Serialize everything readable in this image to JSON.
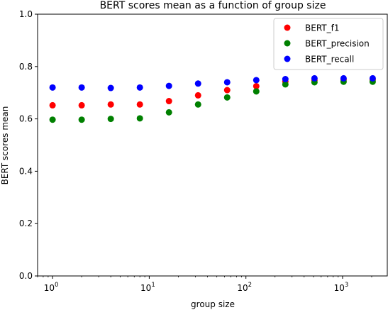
{
  "chart_data": {
    "type": "scatter",
    "title": "BERT scores mean as a function of group size",
    "xlabel": "group size",
    "ylabel": "BERT scores mean",
    "xscale": "log",
    "xlim": [
      0.7,
      2900
    ],
    "ylim": [
      0.0,
      1.0
    ],
    "yticks": [
      0.0,
      0.2,
      0.4,
      0.6,
      0.8,
      1.0
    ],
    "ytick_labels": [
      "0.0",
      "0.2",
      "0.4",
      "0.6",
      "0.8",
      "1.0"
    ],
    "xticks_major": [
      1,
      10,
      100,
      1000
    ],
    "xtick_labels": [
      {
        "base": "10",
        "exp": "0"
      },
      {
        "base": "10",
        "exp": "1"
      },
      {
        "base": "10",
        "exp": "2"
      },
      {
        "base": "10",
        "exp": "3"
      }
    ],
    "grid": false,
    "legend_position": "top-right",
    "x": [
      1,
      2,
      4,
      8,
      16,
      32,
      64,
      128,
      256,
      512,
      1024,
      2048
    ],
    "series": [
      {
        "name": "BERT_f1",
        "color": "#ff0000",
        "values": [
          0.652,
          0.652,
          0.655,
          0.655,
          0.668,
          0.69,
          0.71,
          0.725,
          0.743,
          0.748,
          0.75,
          0.75
        ]
      },
      {
        "name": "BERT_precision",
        "color": "#008000",
        "values": [
          0.597,
          0.597,
          0.6,
          0.602,
          0.625,
          0.655,
          0.682,
          0.705,
          0.732,
          0.74,
          0.742,
          0.742
        ]
      },
      {
        "name": "BERT_recall",
        "color": "#0000ff",
        "values": [
          0.72,
          0.72,
          0.718,
          0.72,
          0.726,
          0.735,
          0.74,
          0.748,
          0.752,
          0.755,
          0.755,
          0.755
        ]
      }
    ]
  }
}
